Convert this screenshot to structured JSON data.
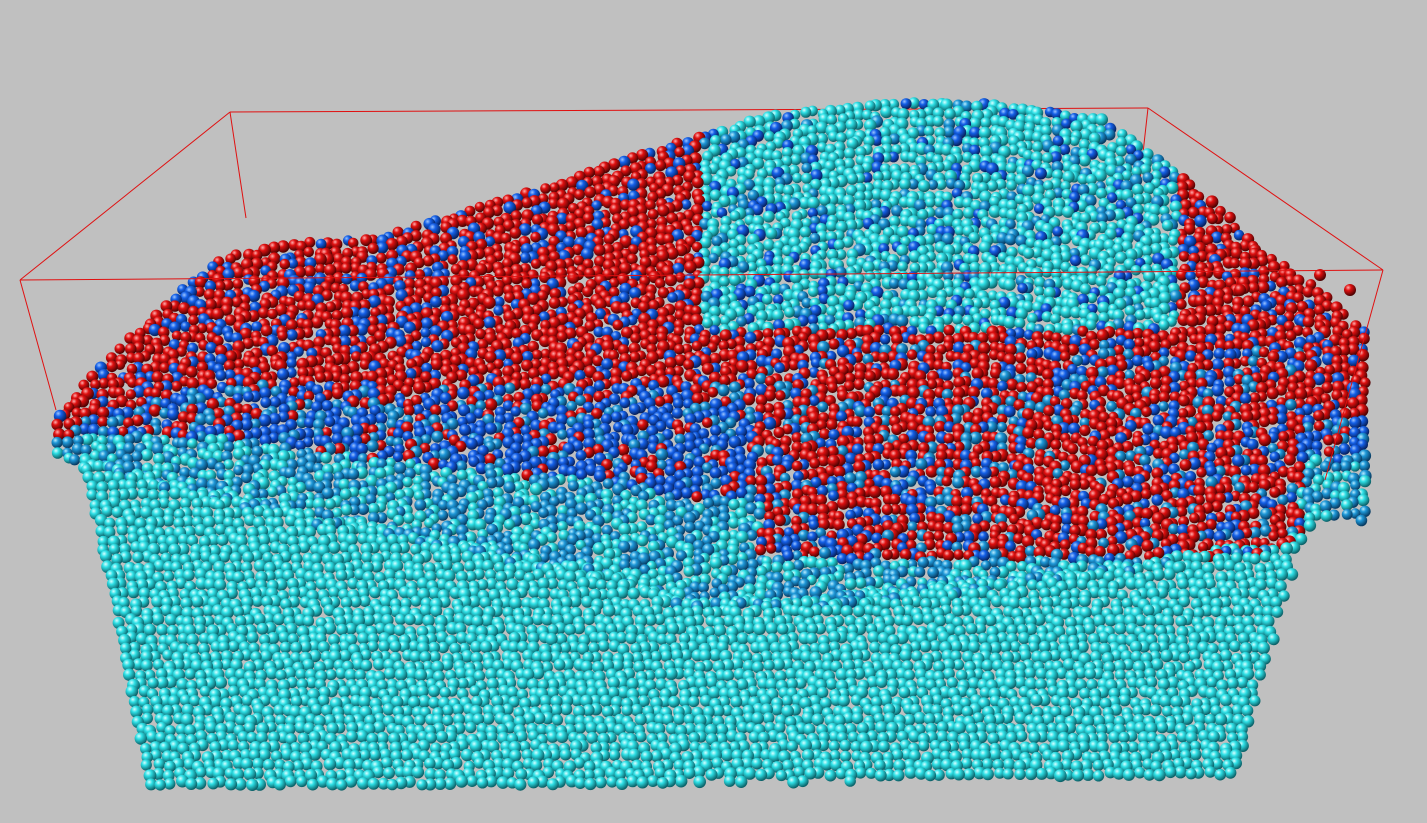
{
  "scene": {
    "type": "3D molecular dynamics particle render",
    "background_color": "#c0c0c0",
    "bounding_box_color": "#e01010",
    "particle_types": [
      {
        "color": "#2ee0e6",
        "shade": "#0b6f78",
        "role": "substrate"
      },
      {
        "color": "#1460e8",
        "shade": "#07276e",
        "role": "interface"
      },
      {
        "color": "#e01010",
        "shade": "#5a0303",
        "role": "surface-layer"
      }
    ]
  }
}
